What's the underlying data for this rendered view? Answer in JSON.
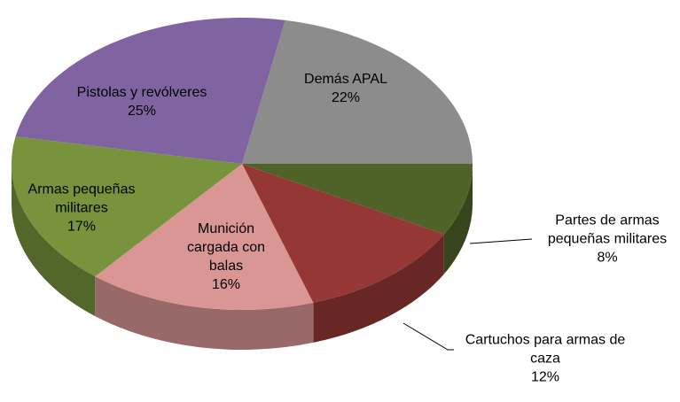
{
  "chart_data": {
    "type": "pie3d",
    "categories": [
      "Demás APAL",
      "Partes de armas pequeñas militares",
      "Cartuchos para armas de caza",
      "Munición cargada con balas",
      "Armas pequeñas militares",
      "Pistolas y revólveres"
    ],
    "values": [
      22,
      8,
      12,
      16,
      17,
      25
    ],
    "value_labels": [
      "22%",
      "8%",
      "12%",
      "16%",
      "17%",
      "25%"
    ],
    "colors": [
      "#8c8c8c",
      "#4f6228",
      "#953735",
      "#d99694",
      "#77933c",
      "#8064a2"
    ]
  }
}
